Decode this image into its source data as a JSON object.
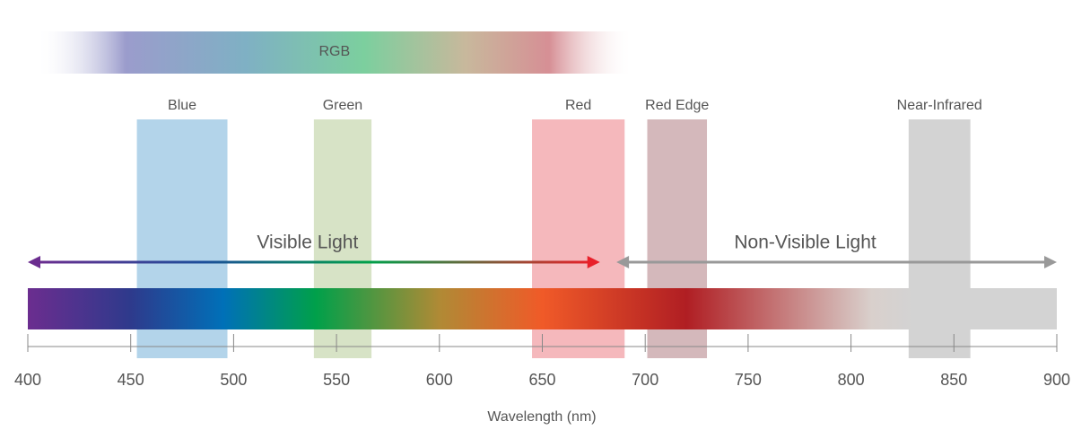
{
  "chart_data": {
    "type": "range",
    "xlabel": "Wavelength (nm)",
    "xlim": [
      400,
      900
    ],
    "xticks": [
      400,
      450,
      500,
      550,
      600,
      650,
      700,
      750,
      800,
      850,
      900
    ],
    "rgb": {
      "name": "RGB",
      "range": [
        404,
        694
      ]
    },
    "bands": [
      {
        "name": "Blue",
        "range": [
          453,
          497
        ],
        "color": "#b3d4ea"
      },
      {
        "name": "Green",
        "range": [
          539,
          567
        ],
        "color": "#d7e3c6"
      },
      {
        "name": "Red",
        "range": [
          645,
          690
        ],
        "color": "#f5b8bc"
      },
      {
        "name": "Red Edge",
        "range": [
          701,
          730
        ],
        "color": "#d4b8bb"
      },
      {
        "name": "Near-Infrared",
        "range": [
          828,
          858
        ],
        "color": "#d3d3d3"
      }
    ],
    "regions": [
      {
        "name": "Visible Light",
        "range": [
          400,
          678
        ]
      },
      {
        "name": "Non-Visible Light",
        "range": [
          686,
          900
        ]
      }
    ]
  }
}
